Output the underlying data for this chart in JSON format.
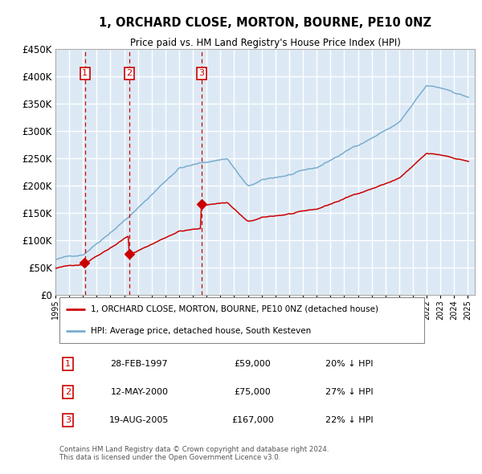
{
  "title": "1, ORCHARD CLOSE, MORTON, BOURNE, PE10 0NZ",
  "subtitle": "Price paid vs. HM Land Registry's House Price Index (HPI)",
  "legend_line1": "1, ORCHARD CLOSE, MORTON, BOURNE, PE10 0NZ (detached house)",
  "legend_line2": "HPI: Average price, detached house, South Kesteven",
  "footer": "Contains HM Land Registry data © Crown copyright and database right 2024.\nThis data is licensed under the Open Government Licence v3.0.",
  "sales": [
    {
      "num": 1,
      "date": "28-FEB-1997",
      "price": 59000,
      "hpi_note": "20% ↓ HPI",
      "year": 1997.15
    },
    {
      "num": 2,
      "date": "12-MAY-2000",
      "price": 75000,
      "hpi_note": "27% ↓ HPI",
      "year": 2000.37
    },
    {
      "num": 3,
      "date": "19-AUG-2005",
      "price": 167000,
      "hpi_note": "22% ↓ HPI",
      "year": 2005.63
    }
  ],
  "red_line_color": "#cc0000",
  "blue_line_color": "#7aadcf",
  "background_color": "#dce9f5",
  "plot_bg_color": "#dce9f5",
  "grid_color": "#ffffff",
  "vline_color": "#cc0000",
  "box_color": "#cc0000",
  "ylim": [
    0,
    450000
  ],
  "yticks": [
    0,
    50000,
    100000,
    150000,
    200000,
    250000,
    300000,
    350000,
    400000,
    450000
  ]
}
